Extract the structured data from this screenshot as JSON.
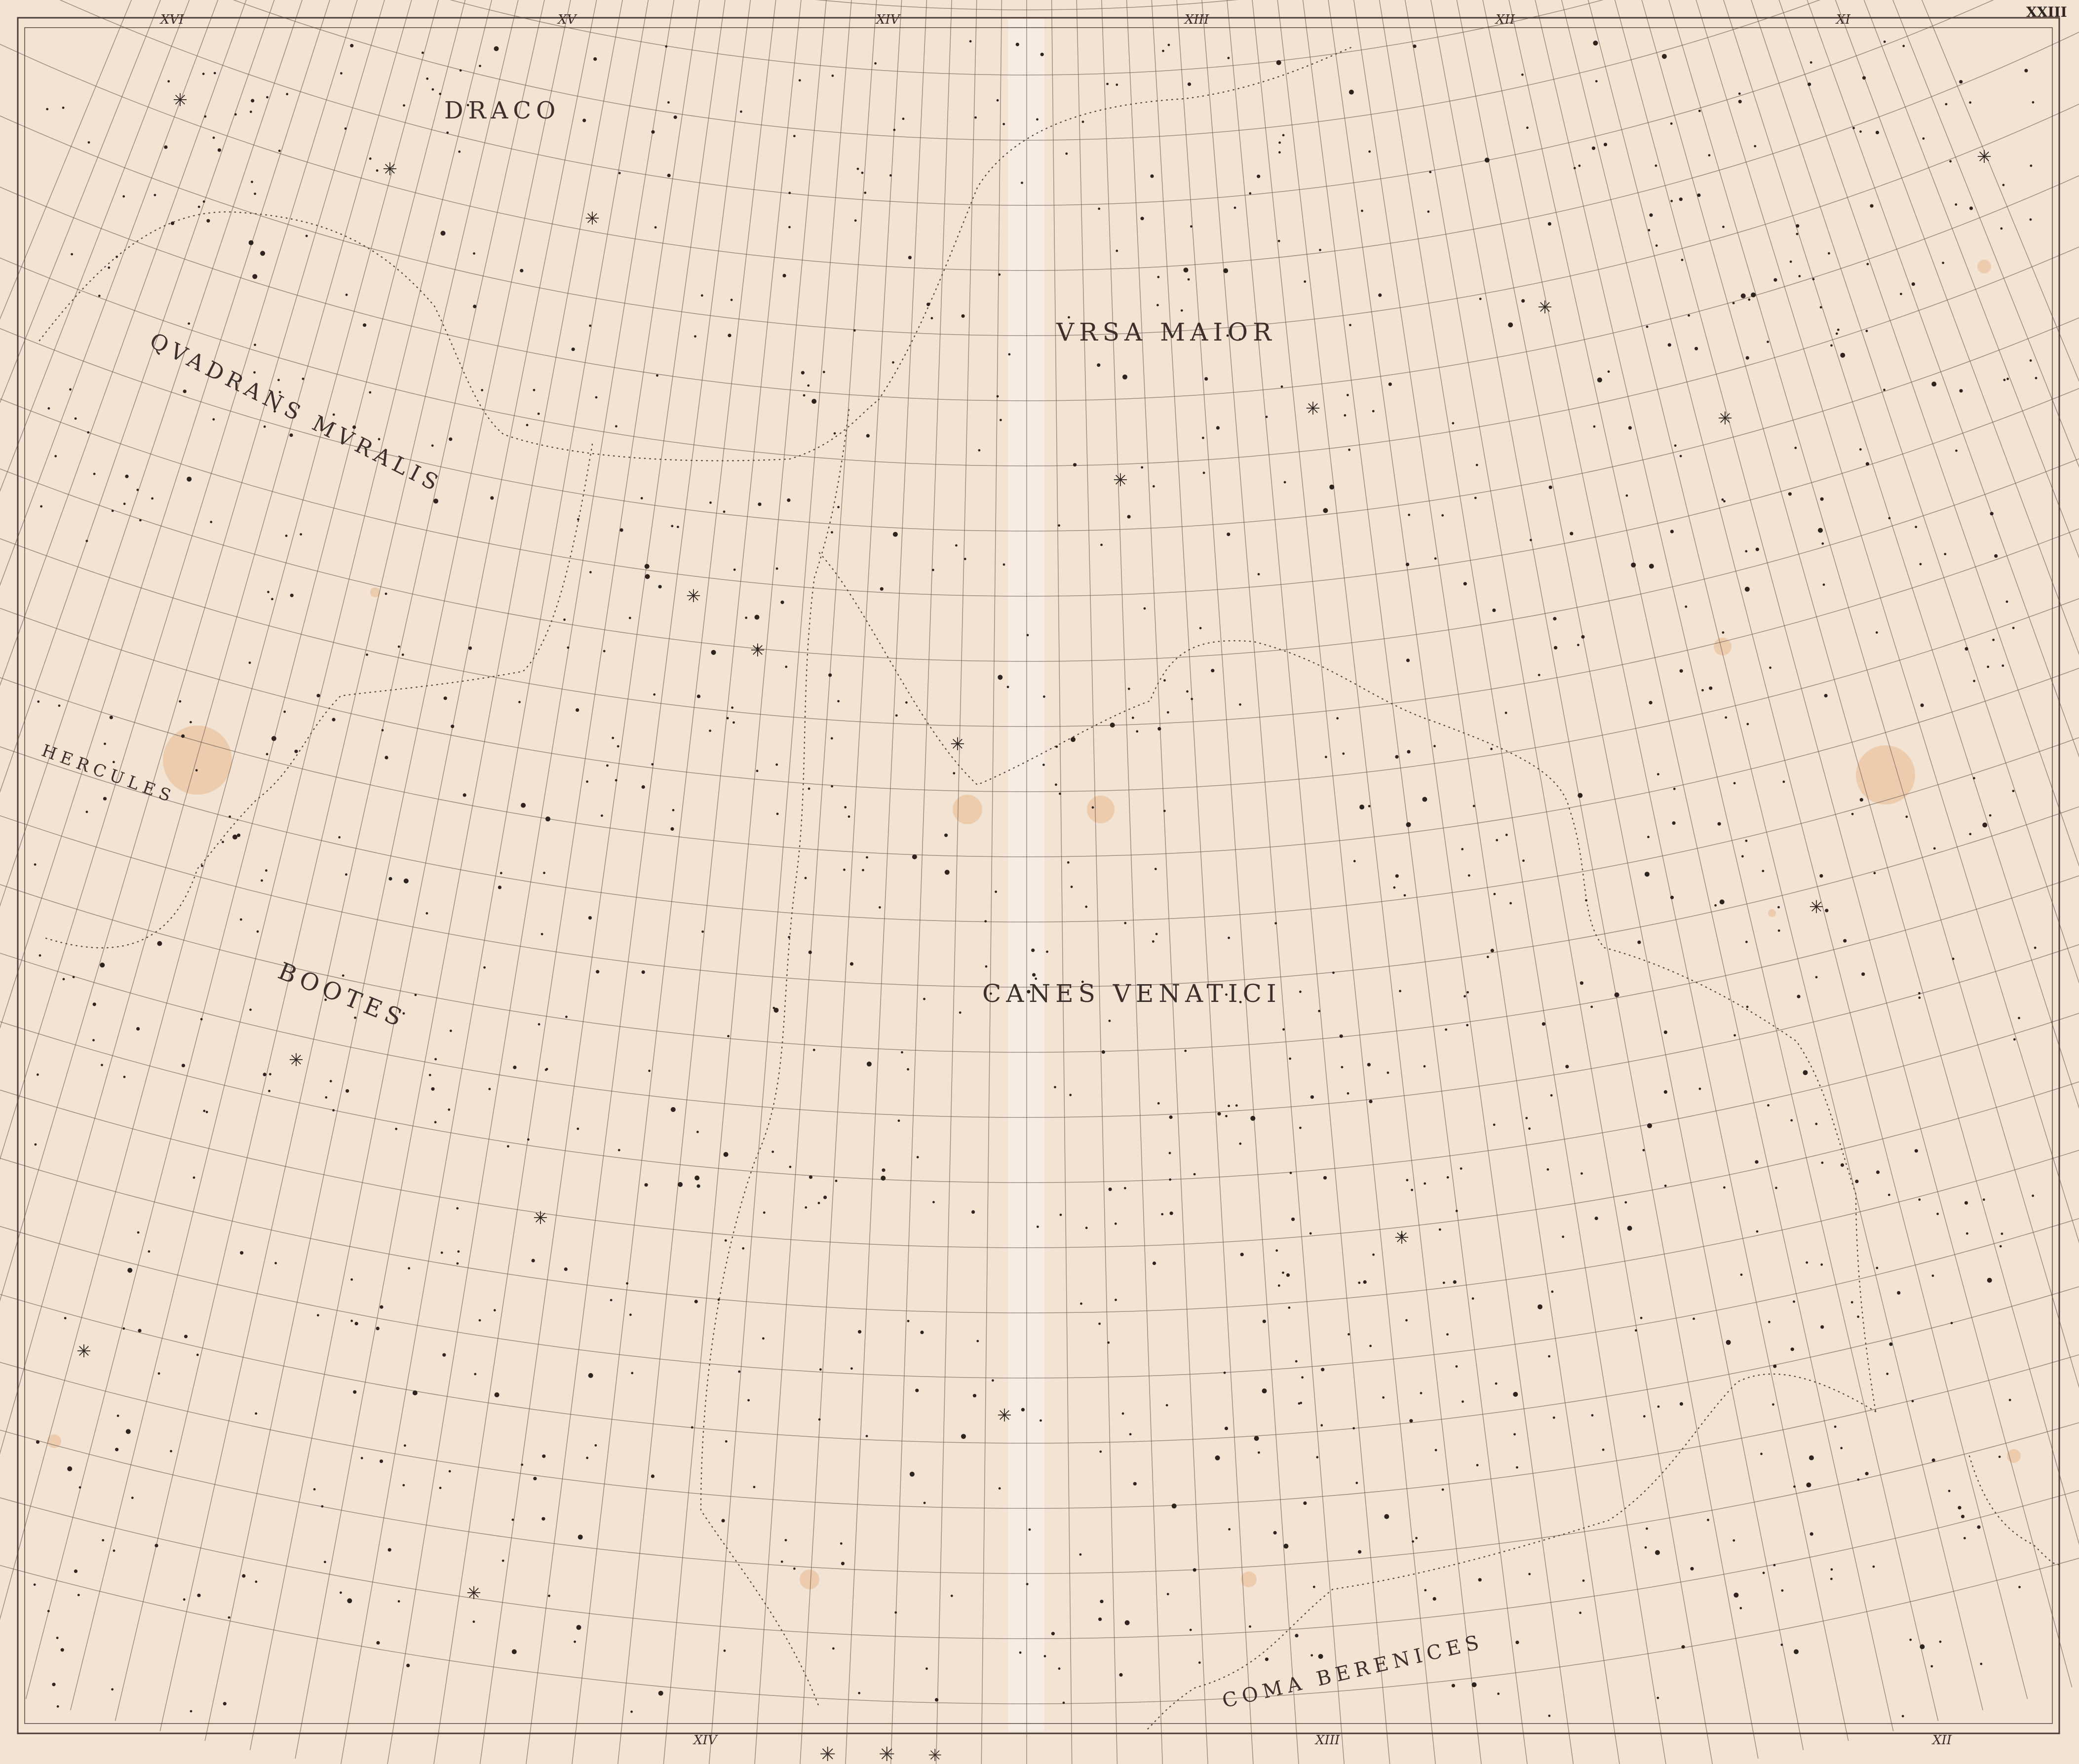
{
  "plate": {
    "number": "XXIII"
  },
  "constellations": [
    {
      "id": "draco",
      "name": "DRACO"
    },
    {
      "id": "ursa-maior",
      "name": "VRSA MAIOR"
    },
    {
      "id": "quadrans-muralis",
      "name": "QVADRANS MVRALIS"
    },
    {
      "id": "hercules",
      "name": "HERCULES"
    },
    {
      "id": "bootes",
      "name": "BOOTES"
    },
    {
      "id": "canes-venatici",
      "name": "CANES VENATICI"
    },
    {
      "id": "coma-berenices",
      "name": "COMA BERENICES"
    }
  ],
  "hour_labels": {
    "top": [
      "XVI",
      "XV",
      "XIV",
      "XIII",
      "XII",
      "XI"
    ],
    "bottom": [
      "XIV",
      "XIII",
      "XII"
    ]
  },
  "colors": {
    "paper": "#f3e3d3",
    "ink": "#3a2f2a",
    "stain": "#e2a06a"
  }
}
